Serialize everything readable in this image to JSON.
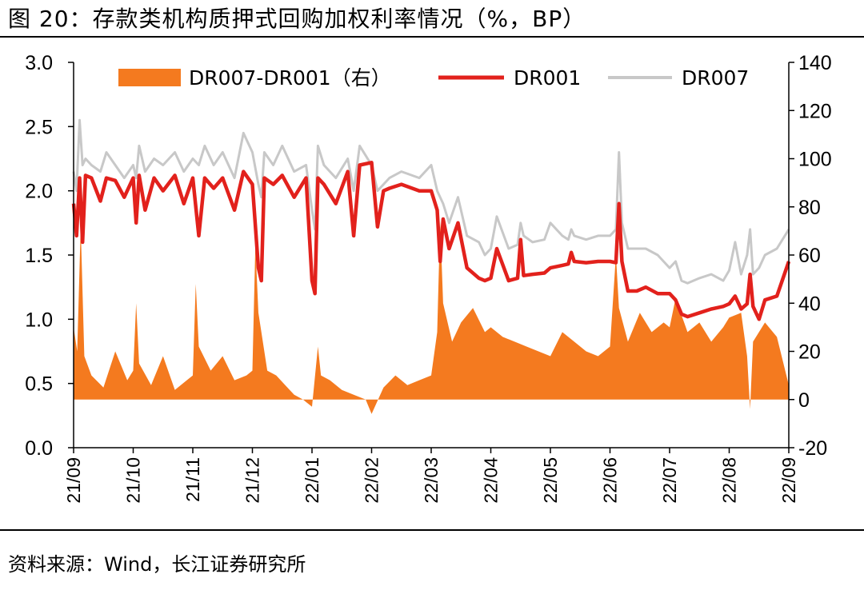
{
  "header": {
    "title": "图 20：存款类机构质押式回购加权利率情况（%，BP）"
  },
  "footer": {
    "source": "资料来源：Wind，长江证券研究所"
  },
  "colors": {
    "spread": "#F47A1F",
    "dr001": "#E2211C",
    "dr007": "#C8C8C8",
    "axis": "#000000"
  },
  "chart_data": {
    "type": "line",
    "title": "存款类机构质押式回购加权利率情况（%，BP）",
    "categories": [
      "21/09",
      "21/10",
      "21/11",
      "21/12",
      "22/01",
      "22/02",
      "22/03",
      "22/04",
      "22/05",
      "22/06",
      "22/07",
      "22/08",
      "22/09"
    ],
    "left_axis": {
      "ylim": [
        0.0,
        3.0
      ],
      "ticks": [
        "3.0",
        "2.5",
        "2.0",
        "1.5",
        "1.0",
        "0.5",
        "0.0"
      ]
    },
    "right_axis": {
      "ylim": [
        -20,
        140
      ],
      "ticks": [
        "140",
        "120",
        "100",
        "80",
        "60",
        "40",
        "20",
        "0",
        "-20"
      ]
    },
    "legend": {
      "position": "top",
      "items": [
        "DR007-DR001（右）",
        "DR001",
        "DR007"
      ]
    },
    "series": [
      {
        "name": "DR007-DR001（右）",
        "type": "area",
        "axis": "right",
        "x": [
          0.0,
          0.06,
          0.12,
          0.18,
          0.3,
          0.5,
          0.7,
          0.9,
          1.0,
          1.05,
          1.1,
          1.3,
          1.5,
          1.7,
          1.9,
          2.0,
          2.05,
          2.1,
          2.3,
          2.5,
          2.7,
          2.9,
          3.0,
          3.05,
          3.1,
          3.25,
          3.4,
          3.55,
          3.7,
          3.85,
          4.0,
          4.1,
          4.15,
          4.3,
          4.5,
          4.7,
          4.9,
          5.0,
          5.2,
          5.4,
          5.6,
          5.8,
          6.0,
          6.1,
          6.15,
          6.2,
          6.35,
          6.5,
          6.7,
          6.9,
          7.0,
          7.2,
          7.4,
          7.6,
          7.8,
          8.0,
          8.2,
          8.4,
          8.6,
          8.8,
          9.0,
          9.1,
          9.15,
          9.3,
          9.5,
          9.7,
          9.9,
          10.0,
          10.1,
          10.3,
          10.5,
          10.7,
          10.9,
          11.0,
          11.2,
          11.3,
          11.35,
          11.4,
          11.6,
          11.8,
          12.0
        ],
        "values": [
          30,
          20,
          72,
          18,
          10,
          5,
          20,
          8,
          12,
          40,
          15,
          6,
          18,
          4,
          8,
          10,
          48,
          22,
          12,
          18,
          8,
          10,
          12,
          64,
          36,
          12,
          10,
          6,
          2,
          0,
          -3,
          22,
          10,
          8,
          4,
          2,
          0,
          -6,
          5,
          10,
          6,
          8,
          10,
          28,
          74,
          40,
          24,
          32,
          38,
          28,
          30,
          26,
          24,
          22,
          20,
          18,
          28,
          24,
          20,
          18,
          22,
          60,
          38,
          24,
          36,
          28,
          32,
          30,
          42,
          28,
          32,
          24,
          30,
          34,
          36,
          18,
          -4,
          24,
          32,
          26,
          6
        ]
      },
      {
        "name": "DR001",
        "type": "line",
        "axis": "left",
        "x": [
          0.0,
          0.05,
          0.1,
          0.15,
          0.2,
          0.3,
          0.45,
          0.55,
          0.7,
          0.85,
          1.0,
          1.05,
          1.1,
          1.2,
          1.35,
          1.5,
          1.7,
          1.85,
          2.0,
          2.1,
          2.2,
          2.35,
          2.5,
          2.7,
          2.85,
          3.0,
          3.1,
          3.15,
          3.2,
          3.35,
          3.5,
          3.7,
          3.9,
          4.0,
          4.05,
          4.1,
          4.2,
          4.4,
          4.6,
          4.7,
          4.8,
          5.0,
          5.1,
          5.2,
          5.3,
          5.5,
          5.8,
          6.0,
          6.1,
          6.15,
          6.2,
          6.3,
          6.45,
          6.6,
          6.8,
          6.9,
          7.0,
          7.1,
          7.3,
          7.45,
          7.5,
          7.55,
          7.7,
          7.9,
          8.0,
          8.2,
          8.3,
          8.35,
          8.4,
          8.6,
          8.8,
          9.0,
          9.1,
          9.15,
          9.2,
          9.3,
          9.45,
          9.6,
          9.8,
          10.0,
          10.1,
          10.2,
          10.3,
          10.5,
          10.7,
          10.9,
          11.0,
          11.1,
          11.2,
          11.3,
          11.35,
          11.4,
          11.5,
          11.6,
          11.8,
          12.0
        ],
        "values": [
          1.9,
          1.65,
          2.1,
          1.6,
          2.12,
          2.1,
          1.92,
          2.1,
          2.08,
          1.95,
          2.1,
          1.75,
          2.12,
          1.85,
          2.1,
          2.0,
          2.12,
          1.9,
          2.1,
          1.65,
          2.1,
          2.02,
          2.1,
          1.85,
          2.15,
          2.05,
          1.4,
          1.3,
          2.1,
          2.05,
          2.12,
          1.95,
          2.1,
          1.3,
          1.2,
          2.1,
          2.05,
          1.9,
          2.15,
          1.65,
          2.2,
          2.22,
          1.72,
          2.0,
          2.02,
          2.05,
          2.0,
          2.0,
          1.85,
          1.45,
          1.78,
          1.55,
          1.75,
          1.4,
          1.32,
          1.3,
          1.32,
          1.55,
          1.3,
          1.32,
          1.62,
          1.34,
          1.35,
          1.36,
          1.4,
          1.42,
          1.43,
          1.52,
          1.45,
          1.44,
          1.45,
          1.45,
          1.44,
          1.9,
          1.45,
          1.22,
          1.22,
          1.25,
          1.2,
          1.2,
          1.15,
          1.04,
          1.02,
          1.05,
          1.08,
          1.1,
          1.12,
          1.18,
          1.08,
          1.12,
          1.35,
          1.1,
          1.0,
          1.15,
          1.18,
          1.45
        ]
      },
      {
        "name": "DR007",
        "type": "line",
        "axis": "left",
        "x": [
          0.0,
          0.05,
          0.1,
          0.15,
          0.2,
          0.3,
          0.45,
          0.55,
          0.7,
          0.85,
          1.0,
          1.05,
          1.1,
          1.2,
          1.35,
          1.5,
          1.7,
          1.85,
          2.0,
          2.1,
          2.2,
          2.35,
          2.5,
          2.7,
          2.85,
          3.0,
          3.1,
          3.15,
          3.2,
          3.35,
          3.5,
          3.7,
          3.9,
          4.0,
          4.05,
          4.1,
          4.2,
          4.4,
          4.6,
          4.7,
          4.8,
          5.0,
          5.1,
          5.2,
          5.3,
          5.5,
          5.8,
          6.0,
          6.1,
          6.15,
          6.2,
          6.3,
          6.45,
          6.6,
          6.8,
          6.9,
          7.0,
          7.1,
          7.3,
          7.45,
          7.5,
          7.55,
          7.7,
          7.9,
          8.0,
          8.2,
          8.3,
          8.35,
          8.4,
          8.6,
          8.8,
          9.0,
          9.1,
          9.15,
          9.2,
          9.3,
          9.45,
          9.6,
          9.8,
          10.0,
          10.1,
          10.2,
          10.3,
          10.5,
          10.7,
          10.9,
          11.0,
          11.1,
          11.2,
          11.3,
          11.35,
          11.4,
          11.5,
          11.6,
          11.8,
          12.0
        ],
        "values": [
          2.15,
          2.0,
          2.55,
          2.2,
          2.25,
          2.2,
          2.15,
          2.3,
          2.2,
          2.1,
          2.2,
          2.1,
          2.35,
          2.15,
          2.25,
          2.2,
          2.3,
          2.15,
          2.25,
          2.2,
          2.35,
          2.2,
          2.3,
          2.1,
          2.45,
          2.3,
          2.05,
          1.95,
          2.3,
          2.2,
          2.35,
          2.15,
          2.2,
          1.85,
          1.7,
          2.35,
          2.2,
          2.1,
          2.25,
          2.0,
          2.35,
          2.2,
          2.0,
          2.05,
          2.1,
          2.15,
          2.1,
          2.2,
          2.0,
          1.95,
          1.9,
          1.75,
          1.95,
          1.65,
          1.6,
          1.5,
          1.55,
          1.8,
          1.55,
          1.58,
          1.75,
          1.65,
          1.6,
          1.62,
          1.75,
          1.65,
          1.62,
          1.7,
          1.65,
          1.62,
          1.65,
          1.65,
          1.7,
          2.3,
          1.75,
          1.55,
          1.55,
          1.55,
          1.5,
          1.4,
          1.45,
          1.3,
          1.28,
          1.32,
          1.35,
          1.3,
          1.38,
          1.6,
          1.35,
          1.5,
          1.7,
          1.35,
          1.4,
          1.5,
          1.55,
          1.7
        ]
      }
    ]
  }
}
